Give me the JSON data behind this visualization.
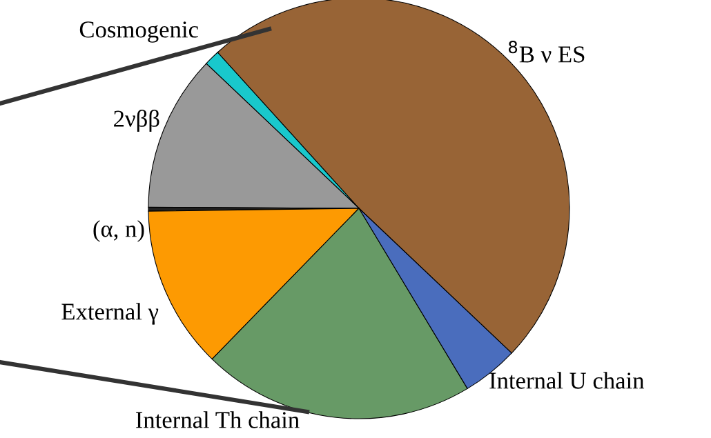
{
  "chart_data": {
    "type": "pie",
    "categories": [
      "$^{8}$B ν ES",
      "Cosmogenic",
      "2νββ",
      "(α, n)",
      "External γ",
      "Internal Th chain",
      "Internal U chain"
    ],
    "values": [
      48.8,
      1.2,
      12.0,
      0.3,
      12.5,
      20.9,
      4.3
    ],
    "colors": [
      "#986436",
      "#19c8cc",
      "#999999",
      "#222222",
      "#fd9a02",
      "#679a66",
      "#4a6dbd"
    ]
  }
}
